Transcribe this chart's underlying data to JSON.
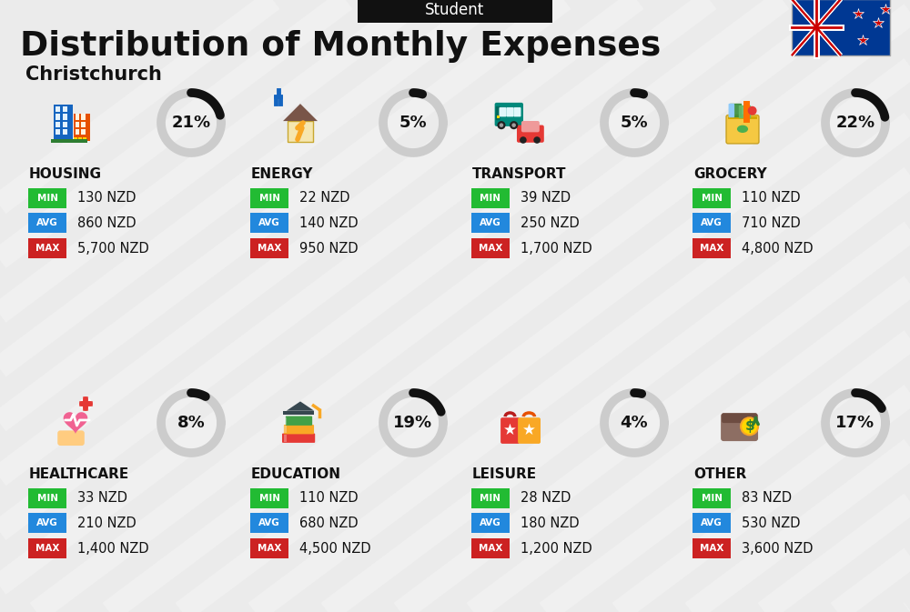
{
  "title": "Distribution of Monthly Expenses",
  "subtitle": "Christchurch",
  "header_label": "Student",
  "bg_color": "#ebebeb",
  "categories": [
    {
      "name": "HOUSING",
      "pct": 21,
      "min_val": "130 NZD",
      "avg_val": "860 NZD",
      "max_val": "5,700 NZD",
      "icon": "housing",
      "row": 0,
      "col": 0
    },
    {
      "name": "ENERGY",
      "pct": 5,
      "min_val": "22 NZD",
      "avg_val": "140 NZD",
      "max_val": "950 NZD",
      "icon": "energy",
      "row": 0,
      "col": 1
    },
    {
      "name": "TRANSPORT",
      "pct": 5,
      "min_val": "39 NZD",
      "avg_val": "250 NZD",
      "max_val": "1,700 NZD",
      "icon": "transport",
      "row": 0,
      "col": 2
    },
    {
      "name": "GROCERY",
      "pct": 22,
      "min_val": "110 NZD",
      "avg_val": "710 NZD",
      "max_val": "4,800 NZD",
      "icon": "grocery",
      "row": 0,
      "col": 3
    },
    {
      "name": "HEALTHCARE",
      "pct": 8,
      "min_val": "33 NZD",
      "avg_val": "210 NZD",
      "max_val": "1,400 NZD",
      "icon": "healthcare",
      "row": 1,
      "col": 0
    },
    {
      "name": "EDUCATION",
      "pct": 19,
      "min_val": "110 NZD",
      "avg_val": "680 NZD",
      "max_val": "4,500 NZD",
      "icon": "education",
      "row": 1,
      "col": 1
    },
    {
      "name": "LEISURE",
      "pct": 4,
      "min_val": "28 NZD",
      "avg_val": "180 NZD",
      "max_val": "1,200 NZD",
      "icon": "leisure",
      "row": 1,
      "col": 2
    },
    {
      "name": "OTHER",
      "pct": 17,
      "min_val": "83 NZD",
      "avg_val": "530 NZD",
      "max_val": "3,600 NZD",
      "icon": "other",
      "row": 1,
      "col": 3
    }
  ],
  "min_color": "#22bb33",
  "avg_color": "#2288dd",
  "max_color": "#cc2222",
  "donut_active": "#111111",
  "donut_inactive": "#cccccc",
  "title_color": "#111111",
  "name_color": "#111111",
  "card_cols": [
    18,
    262,
    505,
    748
  ],
  "card_row_tops": [
    0.735,
    0.365
  ],
  "stripe_color": "#ffffff",
  "stripe_alpha": 0.25
}
